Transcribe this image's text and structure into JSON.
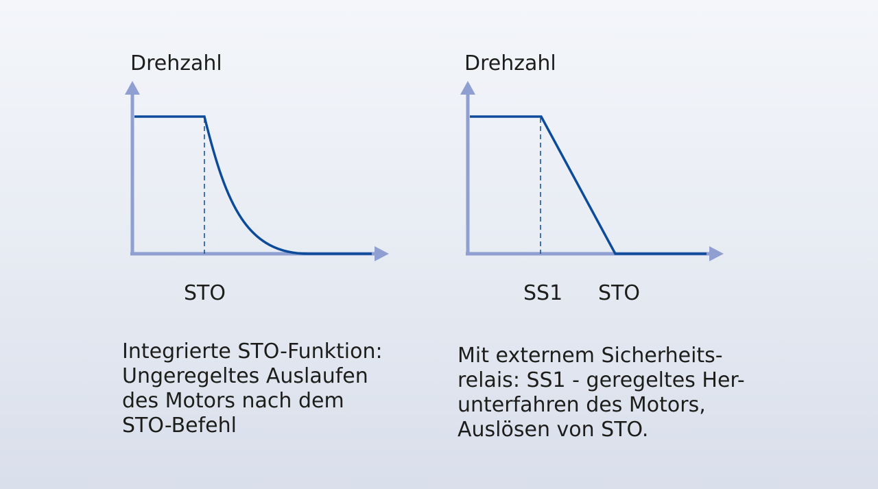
{
  "colors": {
    "axis": "#8f9fd2",
    "curve": "#0c4a9a",
    "text": "#1d1d1b"
  },
  "left_diagram": {
    "y_axis_label": "Drehzahl",
    "x_marker_label": "STO",
    "curve_shape": "constant then exponential decay to zero after STO",
    "caption": [
      "Integrierte STO-Funktion:",
      "Ungeregeltes Auslaufen",
      "des Motors nach dem",
      "STO-Befehl"
    ]
  },
  "right_diagram": {
    "y_axis_label": "Drehzahl",
    "x_marker_labels": [
      "SS1",
      "STO"
    ],
    "curve_shape": "constant then linear ramp down from SS1 to zero at STO",
    "caption": [
      "Mit externem Sicherheits-",
      "relais: SS1 - geregeltes Her-",
      "unterfahren des Motors,",
      "Auslösen von STO."
    ]
  }
}
